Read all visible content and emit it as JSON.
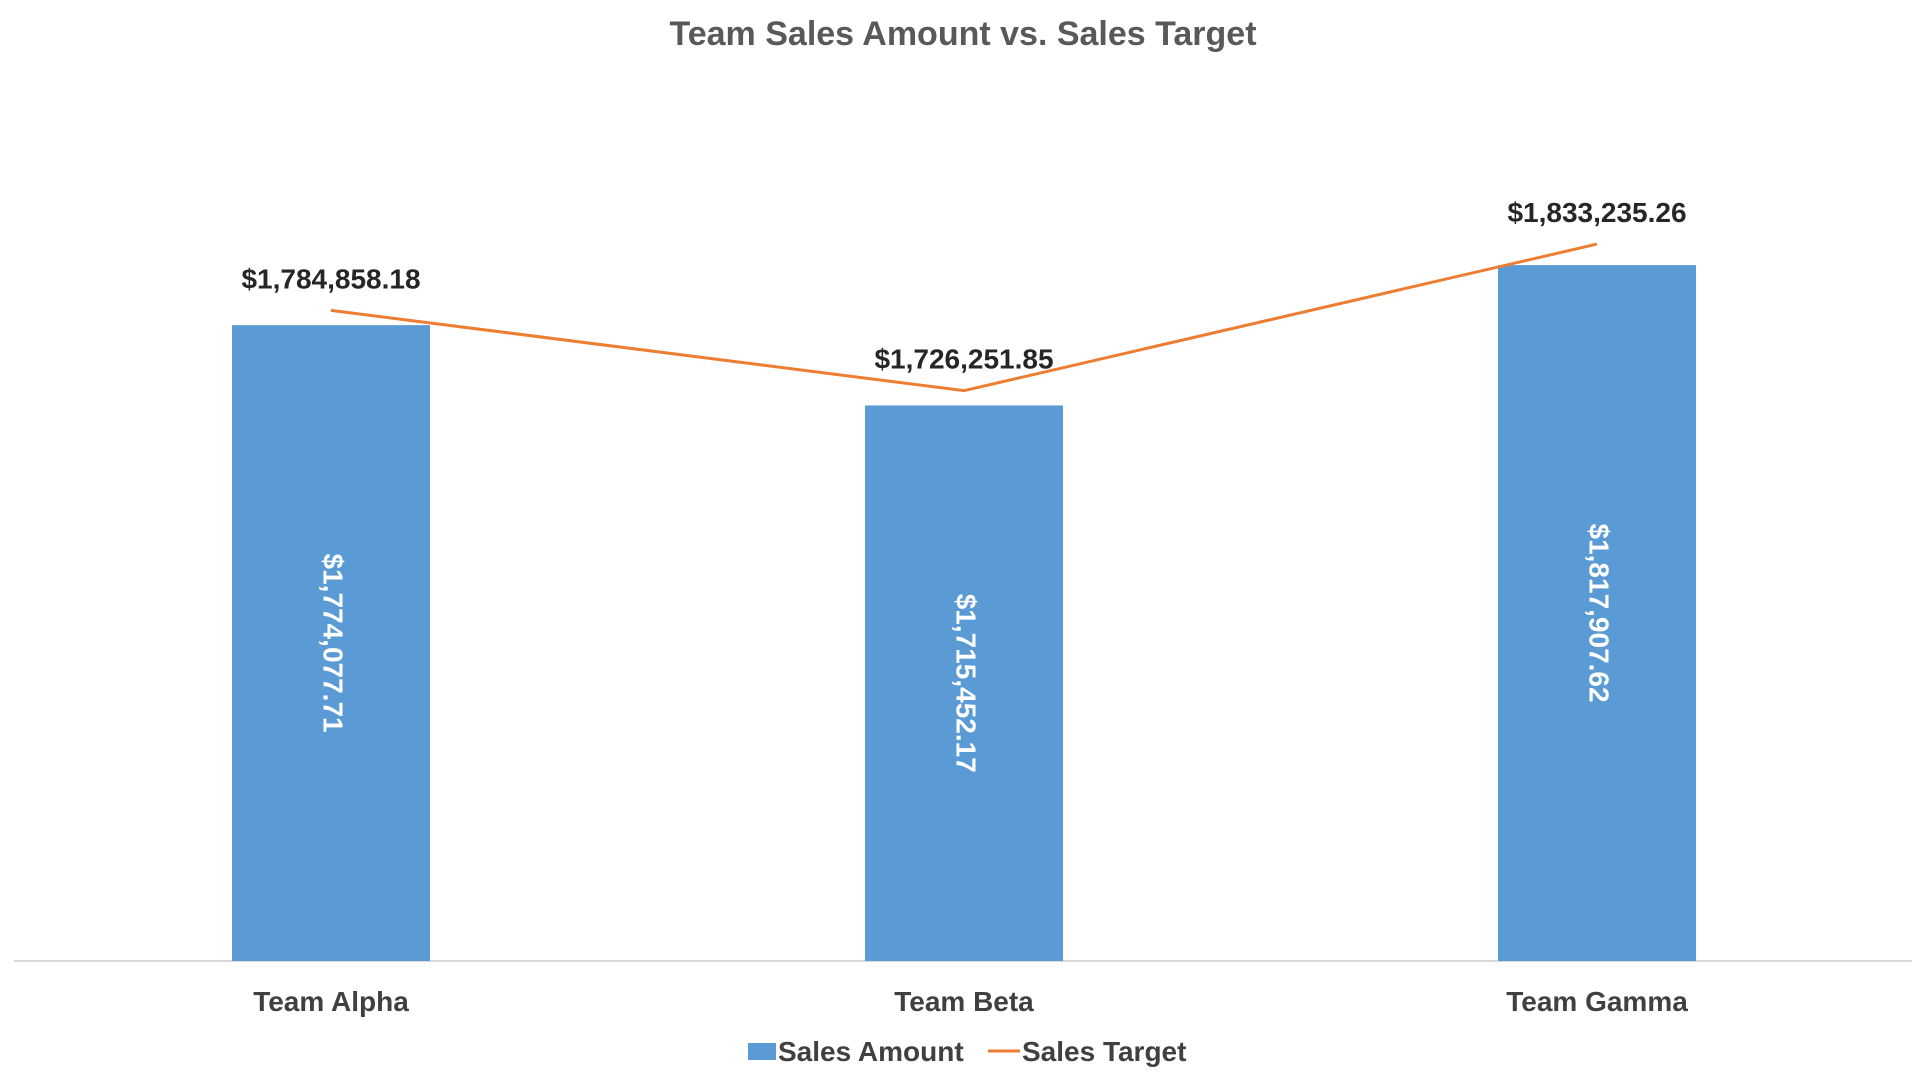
{
  "chart_data": {
    "type": "bar",
    "title": "Team Sales Amount vs. Sales Target",
    "categories": [
      "Team Alpha",
      "Team Beta",
      "Team Gamma"
    ],
    "series": [
      {
        "name": "Sales Amount",
        "type": "bar",
        "color": "#5B9BD5",
        "values": [
          1774077.71,
          1715452.17,
          1817907.62
        ],
        "labels": [
          "$1,774,077.71",
          "$1,715,452.17",
          "$1,817,907.62"
        ]
      },
      {
        "name": "Sales Target",
        "type": "line",
        "color": "#ED7D31",
        "values": [
          1784858.18,
          1726251.85,
          1833235.26
        ],
        "labels": [
          "$1,784,858.18",
          "$1,726,251.85",
          "$1,833,235.26"
        ]
      }
    ],
    "xlabel": "",
    "ylabel": "",
    "axis": {
      "baseline": 1310000,
      "max": 1880000,
      "gridlines": false,
      "y_axis_visible": false
    },
    "legend": {
      "position": "bottom"
    },
    "colors": {
      "title": "#595959",
      "category_label": "#404040",
      "line_label": "#262626",
      "bar_label": "#ffffff",
      "axis_line": "#D9D9D9"
    }
  }
}
